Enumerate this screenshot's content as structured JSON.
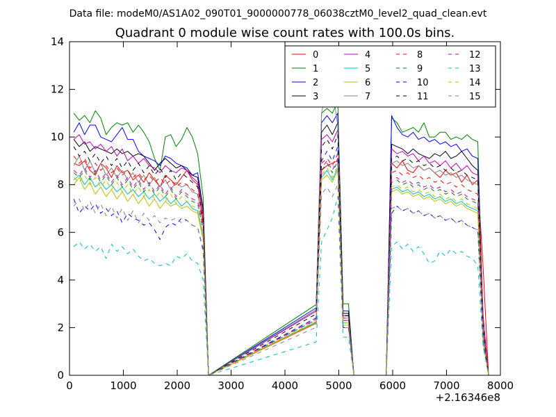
{
  "chart_data": {
    "type": "line",
    "suptitle": "Data file: modeM0/AS1A02_090T01_9000000778_06038cztM0_level2_quad_clean.evt",
    "title": "Quadrant 0 module wise count rates with 100.0s bins.",
    "xlabel": "",
    "ylabel": "",
    "offset_label": "+2.16346e8",
    "xlim": [
      0,
      8000
    ],
    "ylim": [
      0,
      14
    ],
    "x_ticks": [
      0,
      1000,
      2000,
      3000,
      4000,
      5000,
      6000,
      7000,
      8000
    ],
    "x_tick_labels": [
      "0",
      "1000",
      "2000",
      "3000",
      "4000",
      "5000",
      "6000",
      "7000",
      "8000"
    ],
    "y_ticks": [
      0,
      2,
      4,
      6,
      8,
      10,
      12,
      14
    ],
    "y_tick_labels": [
      "0",
      "2",
      "4",
      "6",
      "8",
      "10",
      "12",
      "14"
    ],
    "grid": false,
    "legend_position": "top-right",
    "legend_columns": 4,
    "active_x": [
      [
        80,
        180,
        280,
        380,
        480,
        580,
        680,
        780,
        880,
        980,
        1080,
        1180,
        1280,
        1380,
        1480,
        1580,
        1680,
        1780,
        1880,
        1980,
        2080,
        2180,
        2280,
        2380,
        2480
      ],
      [
        4580,
        4680,
        4780,
        4880,
        4980,
        5080,
        5180
      ],
      [
        5980,
        6080,
        6180,
        6280,
        6380,
        6480,
        6580,
        6680,
        6780,
        6880,
        6980,
        7080,
        7180,
        7280,
        7380,
        7480,
        7580,
        7680,
        7780
      ]
    ],
    "zero_x": [
      2580,
      5280,
      5880
    ],
    "series": [
      {
        "name": "0",
        "color": "#ff0000",
        "dash": "solid",
        "values": [
          8.9,
          8.8,
          9.0,
          8.6,
          8.4,
          8.9,
          8.7,
          8.3,
          8.8,
          8.5,
          8.6,
          8.2,
          8.4,
          8.1,
          8.5,
          8.2,
          7.9,
          8.4,
          8.2,
          8.0,
          8.3,
          8.6,
          8.2,
          8.0,
          6.5,
          2.5,
          7.8,
          8.6,
          8.8,
          8.9,
          9.0,
          2.5,
          2.5,
          8.5,
          8.8,
          8.9,
          8.7,
          9.0,
          8.6,
          8.5,
          8.8,
          8.6,
          8.7,
          8.5,
          8.3,
          8.6,
          8.4,
          8.5,
          8.1,
          8.4,
          8.0,
          8.2,
          4.5
        ]
      },
      {
        "name": "1",
        "color": "#008000",
        "dash": "solid",
        "values": [
          11.0,
          10.7,
          10.9,
          10.6,
          11.1,
          10.8,
          10.1,
          10.4,
          10.6,
          10.5,
          10.6,
          10.2,
          10.5,
          10.2,
          9.8,
          9.1,
          8.6,
          10.0,
          10.1,
          9.6,
          9.9,
          10.4,
          10.0,
          9.3,
          7.5,
          3.0,
          10.6,
          11.0,
          11.2,
          11.0,
          11.5,
          3.0,
          3.0,
          10.5,
          10.9,
          10.8,
          10.6,
          10.2,
          10.3,
          10.4,
          10.2,
          10.6,
          10.0,
          10.0,
          10.2,
          10.2,
          9.9,
          10.0,
          9.9,
          10.1,
          9.9,
          9.8,
          2.0
        ]
      },
      {
        "name": "2",
        "color": "#0000ff",
        "dash": "solid",
        "values": [
          10.2,
          10.6,
          10.1,
          10.5,
          10.5,
          10.0,
          9.9,
          9.8,
          10.1,
          10.4,
          9.9,
          9.9,
          9.4,
          9.2,
          9.1,
          9.0,
          8.8,
          9.2,
          9.1,
          8.9,
          8.8,
          8.7,
          8.4,
          8.5,
          7.0,
          2.7,
          10.1,
          10.6,
          10.9,
          10.6,
          11.0,
          2.7,
          2.7,
          10.5,
          11.5,
          10.9,
          10.4,
          10.1,
          10.0,
          10.2,
          9.9,
          10.0,
          9.8,
          9.9,
          9.7,
          9.8,
          9.6,
          9.7,
          9.4,
          9.5,
          9.2,
          9.1,
          1.5
        ]
      },
      {
        "name": "3",
        "color": "#000000",
        "dash": "solid",
        "values": [
          9.9,
          9.6,
          9.8,
          9.4,
          9.6,
          9.5,
          9.4,
          9.3,
          9.5,
          9.3,
          9.4,
          9.2,
          9.3,
          9.2,
          8.9,
          8.6,
          8.9,
          9.1,
          8.9,
          8.7,
          8.8,
          8.6,
          8.4,
          8.3,
          7.0,
          2.6,
          9.8,
          10.2,
          10.5,
          10.1,
          10.6,
          2.6,
          2.6,
          9.8,
          10.3,
          9.7,
          9.6,
          9.5,
          9.3,
          9.5,
          9.3,
          9.2,
          9.1,
          9.3,
          9.2,
          9.4,
          9.1,
          9.2,
          9.4,
          9.1,
          8.8,
          8.6,
          1.4
        ]
      },
      {
        "name": "4",
        "color": "#bf00bf",
        "dash": "solid",
        "values": [
          9.9,
          10.1,
          9.7,
          9.8,
          9.5,
          9.7,
          9.4,
          9.6,
          9.2,
          9.5,
          9.0,
          9.2,
          8.9,
          9.1,
          8.8,
          8.7,
          8.5,
          8.8,
          8.6,
          8.5,
          8.7,
          8.6,
          8.3,
          8.1,
          6.8,
          2.5,
          9.6,
          9.9,
          10.1,
          9.8,
          10.3,
          2.5,
          2.5,
          9.4,
          9.9,
          9.5,
          9.3,
          9.4,
          9.2,
          9.3,
          9.0,
          9.2,
          8.9,
          9.0,
          8.8,
          9.0,
          8.7,
          8.9,
          8.6,
          8.8,
          8.5,
          8.4,
          2.5
        ]
      },
      {
        "name": "5",
        "color": "#00bfbf",
        "dash": "solid",
        "values": [
          8.2,
          8.4,
          8.0,
          8.3,
          7.9,
          8.1,
          7.8,
          8.0,
          7.7,
          7.9,
          7.6,
          7.8,
          7.5,
          7.7,
          7.4,
          7.6,
          7.3,
          7.5,
          7.2,
          7.4,
          7.1,
          7.3,
          7.0,
          6.9,
          5.8,
          2.2,
          8.0,
          8.3,
          8.6,
          8.2,
          8.7,
          2.2,
          2.2,
          7.9,
          8.2,
          7.8,
          7.9,
          7.7,
          7.8,
          7.6,
          7.7,
          7.5,
          7.6,
          7.4,
          7.5,
          7.3,
          7.4,
          7.2,
          7.3,
          7.1,
          7.0,
          6.9,
          1.5
        ]
      },
      {
        "name": "6",
        "color": "#bfbf00",
        "dash": "solid",
        "values": [
          8.0,
          8.3,
          7.8,
          8.1,
          7.6,
          7.9,
          7.5,
          7.8,
          7.4,
          7.7,
          7.3,
          7.6,
          7.2,
          7.5,
          7.1,
          7.4,
          7.0,
          7.3,
          7.1,
          7.2,
          7.0,
          7.1,
          6.9,
          6.8,
          5.7,
          2.1,
          7.9,
          8.2,
          8.4,
          8.1,
          8.6,
          2.1,
          2.1,
          7.8,
          8.1,
          7.7,
          7.8,
          7.6,
          7.7,
          7.5,
          7.6,
          7.4,
          7.5,
          7.3,
          7.4,
          7.2,
          7.3,
          7.1,
          7.2,
          7.0,
          6.9,
          6.8,
          1.4
        ]
      },
      {
        "name": "7",
        "color": "#808080",
        "dash": "solid",
        "values": [
          8.8,
          9.2,
          8.6,
          9.0,
          8.5,
          8.9,
          8.4,
          8.7,
          8.3,
          8.6,
          8.2,
          8.5,
          8.1,
          8.4,
          8.0,
          8.3,
          7.9,
          8.2,
          7.8,
          8.1,
          7.9,
          8.0,
          7.7,
          7.6,
          6.3,
          2.4,
          9.8,
          11.0,
          12.3,
          12.0,
          10.5,
          2.4,
          2.4,
          9.0,
          9.5,
          8.9,
          9.0,
          8.8,
          8.9,
          8.7,
          8.8,
          8.6,
          8.7,
          8.5,
          8.6,
          8.4,
          8.5,
          8.3,
          8.4,
          8.2,
          8.1,
          8.0,
          1.9
        ]
      },
      {
        "name": "8",
        "color": "#ff0000",
        "dash": "dashed",
        "values": [
          9.2,
          8.9,
          9.1,
          8.7,
          8.9,
          8.6,
          8.8,
          8.5,
          8.7,
          8.4,
          8.6,
          8.3,
          8.5,
          8.2,
          8.4,
          8.1,
          8.3,
          8.0,
          8.2,
          7.9,
          8.1,
          8.0,
          7.8,
          7.6,
          6.4,
          2.4,
          8.6,
          8.9,
          9.1,
          8.8,
          9.3,
          2.4,
          2.4,
          8.4,
          8.8,
          8.5,
          8.6,
          8.4,
          8.5,
          8.3,
          8.4,
          8.2,
          8.3,
          8.1,
          8.2,
          8.0,
          8.1,
          7.9,
          8.0,
          7.8,
          7.7,
          7.6,
          2.0
        ]
      },
      {
        "name": "9",
        "color": "#008000",
        "dash": "dashed",
        "values": [
          8.5,
          8.3,
          8.6,
          8.2,
          8.5,
          8.1,
          8.4,
          8.0,
          8.3,
          7.9,
          8.2,
          7.8,
          8.1,
          7.7,
          8.0,
          7.6,
          7.9,
          7.5,
          7.8,
          7.4,
          7.7,
          7.5,
          7.3,
          7.2,
          6.1,
          2.3,
          8.3,
          8.6,
          8.9,
          8.5,
          9.0,
          2.3,
          2.3,
          8.0,
          8.4,
          8.1,
          8.2,
          8.0,
          8.1,
          7.9,
          8.0,
          7.8,
          7.9,
          7.7,
          7.8,
          7.6,
          7.7,
          7.5,
          7.6,
          7.4,
          7.3,
          7.2,
          1.8
        ]
      },
      {
        "name": "10",
        "color": "#0000ff",
        "dash": "dashed",
        "values": [
          7.4,
          6.8,
          7.1,
          6.9,
          7.2,
          6.8,
          7.0,
          6.7,
          6.9,
          6.4,
          6.8,
          6.6,
          6.5,
          6.3,
          6.4,
          6.1,
          5.7,
          6.2,
          6.4,
          6.3,
          6.6,
          6.5,
          6.3,
          6.2,
          5.3,
          2.0,
          8.6,
          9.0,
          9.4,
          9.0,
          9.6,
          2.0,
          2.0,
          6.5,
          7.0,
          6.8,
          7.1,
          6.9,
          7.0,
          6.8,
          6.9,
          6.7,
          6.8,
          6.6,
          6.7,
          6.5,
          6.6,
          6.4,
          6.5,
          6.3,
          6.2,
          6.1,
          1.3
        ]
      },
      {
        "name": "11",
        "color": "#000000",
        "dash": "dashed",
        "values": [
          9.6,
          9.2,
          9.4,
          9.0,
          9.3,
          8.9,
          9.2,
          8.8,
          9.1,
          8.7,
          9.0,
          8.6,
          8.9,
          8.5,
          8.8,
          8.4,
          8.7,
          8.3,
          8.6,
          8.2,
          8.5,
          8.3,
          8.1,
          7.9,
          6.6,
          2.5,
          9.2,
          9.6,
          9.9,
          9.5,
          10.1,
          2.5,
          2.5,
          9.0,
          9.4,
          9.1,
          9.2,
          9.0,
          9.1,
          8.9,
          9.0,
          8.8,
          8.9,
          8.7,
          8.8,
          8.6,
          8.7,
          8.5,
          8.6,
          8.4,
          8.3,
          8.2,
          2.1
        ]
      },
      {
        "name": "12",
        "color": "#bf00bf",
        "dash": "dashed",
        "values": [
          8.6,
          8.4,
          8.7,
          8.3,
          8.6,
          8.2,
          8.5,
          8.1,
          8.4,
          8.0,
          8.3,
          7.9,
          8.2,
          7.8,
          8.1,
          7.7,
          8.0,
          7.6,
          7.9,
          7.5,
          7.8,
          7.6,
          7.4,
          7.3,
          6.2,
          2.3,
          8.4,
          8.7,
          9.0,
          8.6,
          9.1,
          2.3,
          2.3,
          8.1,
          8.5,
          8.2,
          8.3,
          8.1,
          8.2,
          8.0,
          8.1,
          7.9,
          8.0,
          7.8,
          7.9,
          7.7,
          7.8,
          7.6,
          7.7,
          7.5,
          7.4,
          7.3,
          1.9
        ]
      },
      {
        "name": "13",
        "color": "#00bfbf",
        "dash": "dashed",
        "values": [
          5.4,
          5.6,
          5.3,
          5.5,
          5.2,
          5.4,
          4.9,
          5.5,
          5.2,
          5.4,
          5.1,
          5.3,
          5.0,
          4.8,
          4.9,
          4.7,
          4.6,
          4.7,
          4.6,
          5.0,
          4.9,
          5.1,
          4.8,
          4.7,
          4.0,
          1.6,
          5.0,
          5.6,
          6.1,
          6.6,
          7.5,
          1.6,
          1.6,
          6.2,
          6.1,
          5.4,
          5.6,
          5.3,
          5.5,
          5.2,
          5.4,
          5.1,
          4.7,
          4.8,
          5.2,
          5.0,
          5.3,
          5.1,
          5.2,
          5.0,
          4.9,
          4.6,
          1.2
        ]
      },
      {
        "name": "14",
        "color": "#bfbf00",
        "dash": "dashed",
        "values": [
          8.3,
          8.1,
          8.4,
          8.0,
          8.3,
          7.9,
          8.2,
          7.8,
          8.1,
          7.7,
          8.0,
          7.6,
          7.9,
          7.5,
          7.8,
          7.4,
          7.7,
          7.3,
          7.6,
          7.2,
          7.5,
          7.3,
          7.1,
          7.0,
          5.9,
          2.2,
          8.1,
          8.4,
          8.7,
          8.3,
          8.8,
          2.2,
          2.2,
          7.9,
          8.2,
          7.9,
          8.0,
          7.8,
          7.9,
          7.7,
          7.8,
          7.6,
          7.7,
          7.5,
          7.6,
          7.4,
          7.5,
          7.3,
          7.4,
          7.2,
          7.1,
          7.0,
          1.6
        ]
      },
      {
        "name": "15",
        "color": "#808080",
        "dash": "dashed",
        "values": [
          7.1,
          7.4,
          6.9,
          7.3,
          6.8,
          7.2,
          6.7,
          7.1,
          6.6,
          7.0,
          6.5,
          6.9,
          6.4,
          6.8,
          6.5,
          6.7,
          6.4,
          6.6,
          6.5,
          6.6,
          6.4,
          6.5,
          6.3,
          6.2,
          5.2,
          2.0,
          7.2,
          7.6,
          7.9,
          7.5,
          8.0,
          2.0,
          2.0,
          6.9,
          7.3,
          7.0,
          7.1,
          6.9,
          7.0,
          6.8,
          6.9,
          6.7,
          6.8,
          6.6,
          6.7,
          6.5,
          6.6,
          6.4,
          6.5,
          6.3,
          6.2,
          6.1,
          1.5
        ]
      }
    ]
  }
}
